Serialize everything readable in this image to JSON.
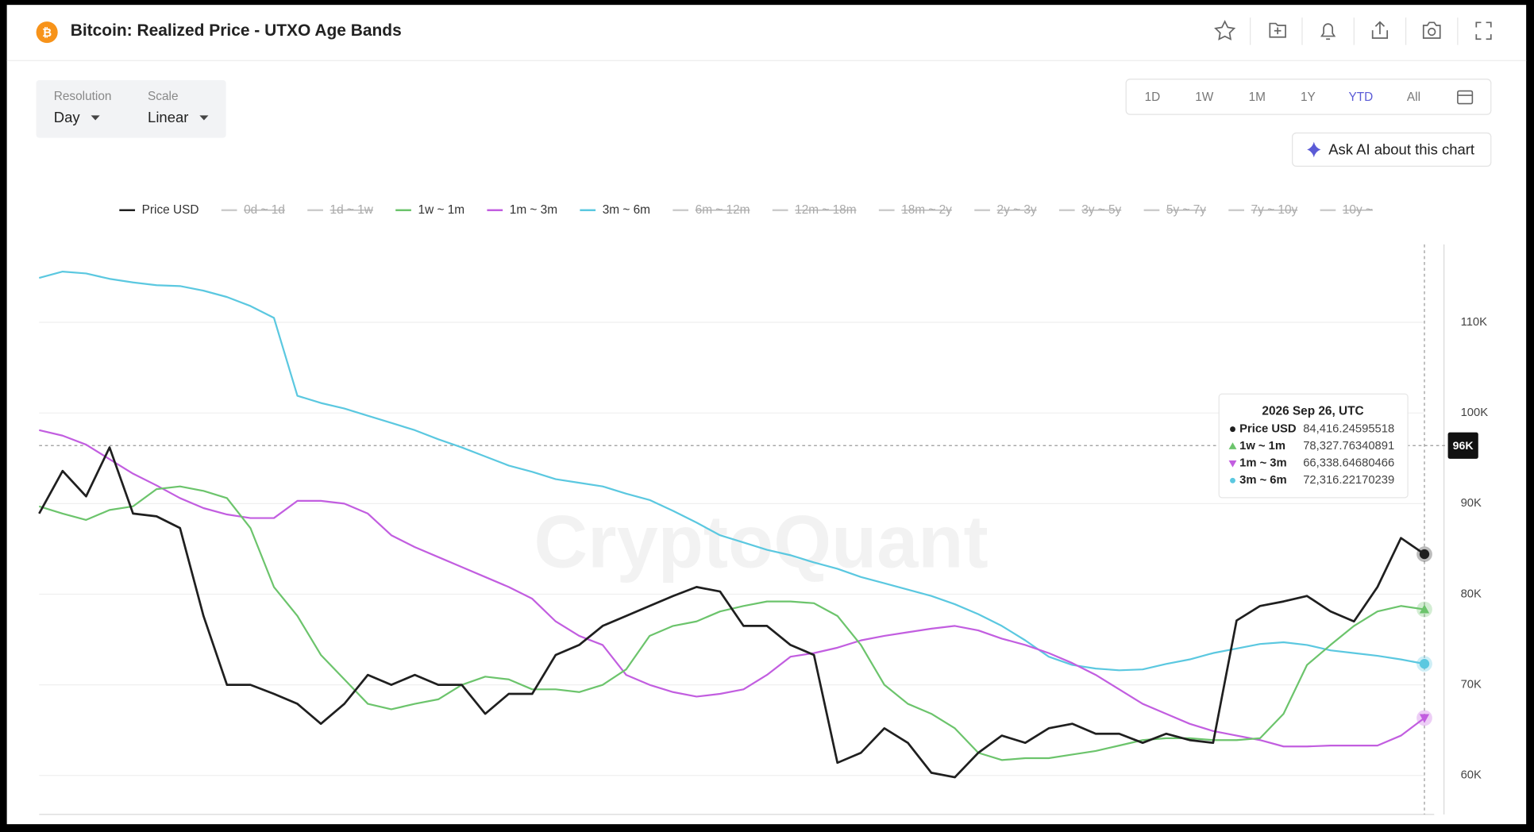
{
  "header": {
    "title": "Bitcoin: Realized Price - UTXO Age Bands"
  },
  "controls": {
    "resolution_label": "Resolution",
    "resolution": "Day",
    "scale_label": "Scale",
    "scale": "Linear"
  },
  "ranges": {
    "options": [
      "1D",
      "1W",
      "1M",
      "1Y",
      "YTD",
      "All"
    ],
    "active": "YTD"
  },
  "ask_ai": "Ask AI about this chart",
  "watermark": "CryptoQuant",
  "chart_data": {
    "type": "line",
    "ylim": [
      55700,
      118600
    ],
    "yticks": [
      {
        "value": 60000,
        "label": "60K"
      },
      {
        "value": 70000,
        "label": "70K"
      },
      {
        "value": 80000,
        "label": "80K"
      },
      {
        "value": 90000,
        "label": "90K"
      },
      {
        "value": 100000,
        "label": "100K"
      },
      {
        "value": 110000,
        "label": "110K"
      }
    ],
    "grid": true,
    "crosshair": {
      "value": 96400,
      "label": "96K"
    },
    "series": [
      {
        "name": "Price USD",
        "color": "#1f1f1f",
        "marker": "circle",
        "values": [
          88900,
          93600,
          90800,
          96200,
          88900,
          88600,
          87300,
          77600,
          70000,
          70000,
          69000,
          67900,
          65700,
          67900,
          71100,
          70000,
          71100,
          70000,
          70000,
          66800,
          69000,
          69000,
          73300,
          74400,
          76500,
          77600,
          78700,
          79800,
          80800,
          80300,
          76500,
          76500,
          74400,
          73300,
          61400,
          62500,
          65200,
          63600,
          60300,
          59800,
          62500,
          64400,
          63600,
          65200,
          65700,
          64600,
          64600,
          63600,
          64600,
          63900,
          63600,
          77100,
          78700,
          79200,
          79800,
          78100,
          77000,
          80800,
          86200,
          84416.24595518
        ]
      },
      {
        "name": "0d ~ 1d",
        "hidden": true
      },
      {
        "name": "1d ~ 1w",
        "hidden": true
      },
      {
        "name": "1w ~ 1m",
        "color": "#6cc46c",
        "marker": "triangle-up",
        "values": [
          89700,
          88900,
          88200,
          89300,
          89700,
          91600,
          91900,
          91400,
          90600,
          87300,
          80800,
          77600,
          73300,
          70600,
          67900,
          67300,
          67900,
          68400,
          70000,
          70900,
          70600,
          69500,
          69500,
          69200,
          70000,
          71700,
          75400,
          76500,
          77000,
          78100,
          78700,
          79200,
          79200,
          79000,
          77600,
          74400,
          70000,
          67900,
          66800,
          65200,
          62500,
          61700,
          61900,
          61900,
          62300,
          62700,
          63300,
          63900,
          64100,
          64100,
          63900,
          63900,
          64100,
          66800,
          72200,
          74400,
          76500,
          78100,
          78700,
          78327.76340891
        ]
      },
      {
        "name": "1m ~ 3m",
        "color": "#c25ee0",
        "marker": "triangle-down",
        "values": [
          98100,
          97500,
          96500,
          94900,
          93300,
          92000,
          90600,
          89500,
          88800,
          88400,
          88400,
          90300,
          90300,
          90000,
          88900,
          86500,
          85200,
          84100,
          83000,
          81900,
          80800,
          79500,
          77000,
          75400,
          74400,
          71100,
          70000,
          69200,
          68700,
          69000,
          69500,
          71100,
          73100,
          73500,
          74100,
          74900,
          75400,
          75800,
          76200,
          76500,
          76000,
          75100,
          74400,
          73500,
          72400,
          71100,
          69500,
          67900,
          66800,
          65700,
          64900,
          64400,
          63900,
          63200,
          63200,
          63300,
          63300,
          63300,
          64400,
          66338.64680466
        ]
      },
      {
        "name": "3m ~ 6m",
        "color": "#5bc8e0",
        "marker": "circle",
        "values": [
          114900,
          115600,
          115400,
          114800,
          114400,
          114100,
          114000,
          113500,
          112800,
          111800,
          110500,
          101900,
          101100,
          100500,
          99700,
          98900,
          98100,
          97100,
          96200,
          95200,
          94200,
          93500,
          92700,
          92300,
          91900,
          91100,
          90400,
          89200,
          87900,
          86500,
          85700,
          84900,
          84300,
          83500,
          82800,
          81900,
          81200,
          80500,
          79800,
          78900,
          77800,
          76500,
          74900,
          73100,
          72200,
          71800,
          71600,
          71700,
          72300,
          72800,
          73500,
          74000,
          74500,
          74700,
          74400,
          73800,
          73500,
          73200,
          72800,
          72316.22170239
        ]
      },
      {
        "name": "6m ~ 12m",
        "hidden": true
      },
      {
        "name": "12m ~ 18m",
        "hidden": true
      },
      {
        "name": "18m ~ 2y",
        "hidden": true
      },
      {
        "name": "2y ~ 3y",
        "hidden": true
      },
      {
        "name": "3y ~ 5y",
        "hidden": true
      },
      {
        "name": "5y ~ 7y",
        "hidden": true
      },
      {
        "name": "7y ~ 10y",
        "hidden": true
      },
      {
        "name": "10y ~",
        "hidden": true
      }
    ],
    "tooltip": {
      "date": "2026 Sep 26, UTC",
      "rows": [
        {
          "name": "Price USD",
          "value": "84,416.24595518"
        },
        {
          "name": "1w ~ 1m",
          "value": "78,327.76340891"
        },
        {
          "name": "1m ~ 3m",
          "value": "66,338.64680466"
        },
        {
          "name": "3m ~ 6m",
          "value": "72,316.22170239"
        }
      ]
    }
  }
}
